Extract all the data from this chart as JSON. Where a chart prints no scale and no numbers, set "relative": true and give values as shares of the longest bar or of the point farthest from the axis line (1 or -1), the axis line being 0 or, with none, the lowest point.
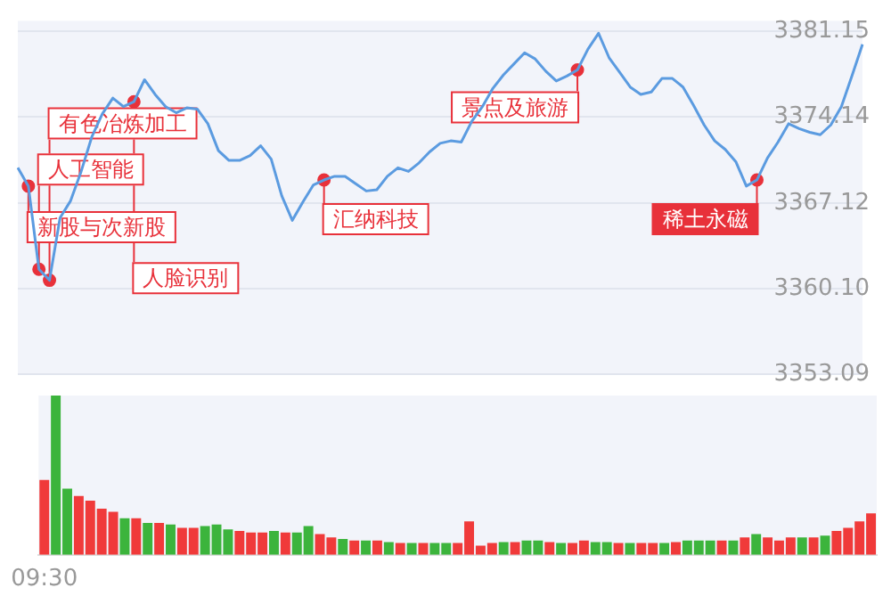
{
  "chart_data": [
    {
      "type": "line",
      "ylim": [
        3353.09,
        3382
      ],
      "yticks": [
        {
          "value": 3353.09,
          "label": "3353.09"
        },
        {
          "value": 3360.1,
          "label": "3360.10"
        },
        {
          "value": 3367.12,
          "label": "3367.12"
        },
        {
          "value": 3374.14,
          "label": "3374.14"
        },
        {
          "value": 3381.15,
          "label": "3381.15"
        }
      ],
      "grid": "y",
      "tick_labels": "y",
      "marker": "none",
      "categories": [
        null,
        null,
        null,
        null,
        null,
        null,
        null,
        null,
        null,
        null,
        null,
        null,
        null,
        null,
        null,
        null,
        null,
        null,
        null,
        null,
        null,
        null,
        null,
        null,
        null,
        null,
        null,
        null,
        null,
        null,
        null,
        null,
        null,
        null,
        null,
        null,
        null,
        null,
        null,
        null,
        null,
        null,
        null,
        null,
        null,
        null,
        null,
        null,
        null,
        null,
        null,
        null,
        null,
        null,
        null,
        null,
        null,
        null,
        null,
        null,
        null,
        null,
        null,
        null,
        null,
        null,
        null,
        null,
        null,
        null,
        null,
        null,
        null,
        null,
        null,
        null,
        null,
        null,
        null,
        null,
        null
      ],
      "series": [
        {
          "type": "line",
          "color": "#5b9be0",
          "values": [
            3370.0,
            3368.5,
            3361.7,
            3360.8,
            3365.9,
            3367.3,
            3369.7,
            3372.5,
            3374.4,
            3375.7,
            3375.0,
            3375.4,
            3377.2,
            3376.0,
            3375.0,
            3374.5,
            3374.9,
            3374.8,
            3373.6,
            3371.4,
            3370.6,
            3370.6,
            3371.0,
            3371.8,
            3370.7,
            3367.7,
            3365.7,
            3367.2,
            3368.6,
            3369.0,
            3369.3,
            3369.3,
            3368.7,
            3368.1,
            3368.2,
            3369.3,
            3370.0,
            3369.7,
            3370.4,
            3371.3,
            3372.0,
            3372.2,
            3372.1,
            3373.8,
            3375.0,
            3376.5,
            3377.6,
            3378.5,
            3379.4,
            3378.9,
            3377.9,
            3377.1,
            3377.5,
            3378.0,
            3379.7,
            3381.0,
            3379.0,
            3377.8,
            3376.6,
            3376.0,
            3376.2,
            3377.3,
            3377.3,
            3376.6,
            3375.1,
            3373.5,
            3372.2,
            3371.5,
            3370.5,
            3368.5,
            3369.0,
            3370.8,
            3372.1,
            3373.6,
            3373.2,
            3372.9,
            3372.7,
            3373.5,
            3375.0,
            3377.5,
            3380.1
          ]
        },
        {
          "type": "scatter",
          "color": "#e8313a",
          "marker": "circle",
          "values": [
            null,
            3368.5,
            3361.7,
            3360.8,
            null,
            null,
            null,
            null,
            null,
            null,
            null,
            3375.4,
            null,
            null,
            null,
            null,
            null,
            null,
            null,
            null,
            null,
            null,
            null,
            null,
            null,
            null,
            null,
            null,
            null,
            3369.0,
            null,
            null,
            null,
            null,
            null,
            null,
            null,
            null,
            null,
            null,
            null,
            null,
            null,
            null,
            null,
            null,
            null,
            null,
            null,
            null,
            null,
            null,
            null,
            3378.0,
            null,
            null,
            null,
            null,
            null,
            null,
            null,
            null,
            null,
            null,
            null,
            null,
            null,
            null,
            null,
            null,
            3369.0,
            null,
            null,
            null,
            null,
            null,
            null,
            null,
            null,
            null,
            null
          ]
        }
      ],
      "annotations": [
        "新股与次新股",
        "人工智能",
        "有色冶炼加工",
        "人脸识别",
        "汇纳科技",
        "景点及旅游",
        "稀土永磁"
      ]
    },
    {
      "type": "bar",
      "relative": true,
      "categories": [
        "09:30",
        null,
        null,
        null,
        null,
        null,
        null,
        null,
        null,
        null,
        null,
        null,
        null,
        null,
        null,
        null,
        null,
        null,
        null,
        null,
        null,
        null,
        null,
        null,
        null,
        null,
        null,
        null,
        null,
        null,
        null,
        null,
        null,
        null,
        null,
        null,
        null,
        null,
        null,
        null,
        null,
        null,
        null,
        null,
        null,
        null,
        null,
        null,
        null,
        null,
        null,
        null,
        null,
        null,
        null,
        null,
        null,
        null,
        null,
        null,
        null,
        null,
        null,
        null,
        null,
        null,
        null,
        null,
        null,
        null,
        null,
        null,
        null
      ],
      "values": [
        0.47,
        1.0,
        0.415,
        0.37,
        0.34,
        0.29,
        0.27,
        0.23,
        0.23,
        0.2,
        0.2,
        0.19,
        0.17,
        0.17,
        0.18,
        0.19,
        0.16,
        0.15,
        0.14,
        0.14,
        0.15,
        0.14,
        0.14,
        0.18,
        0.13,
        0.11,
        0.1,
        0.09,
        0.09,
        0.09,
        0.08,
        0.075,
        0.075,
        0.075,
        0.075,
        0.075,
        0.075,
        0.21,
        0.057,
        0.075,
        0.08,
        0.08,
        0.09,
        0.09,
        0.08,
        0.075,
        0.075,
        0.09,
        0.08,
        0.08,
        0.075,
        0.075,
        0.075,
        0.075,
        0.075,
        0.08,
        0.09,
        0.09,
        0.09,
        0.09,
        0.09,
        0.11,
        0.13,
        0.11,
        0.09,
        0.11,
        0.11,
        0.11,
        0.12,
        0.15,
        0.17,
        0.21,
        0.26
      ],
      "colors": [
        "#f03a3a",
        "#3cb43c",
        "#3cb43c",
        "#f03a3a",
        "#f03a3a",
        "#f03a3a",
        "#f03a3a",
        "#3cb43c",
        "#f03a3a",
        "#3cb43c",
        "#f03a3a",
        "#3cb43c",
        "#f03a3a",
        "#f03a3a",
        "#3cb43c",
        "#3cb43c",
        "#3cb43c",
        "#f03a3a",
        "#f03a3a",
        "#f03a3a",
        "#3cb43c",
        "#f03a3a",
        "#3cb43c",
        "#3cb43c",
        "#f03a3a",
        "#f03a3a",
        "#3cb43c",
        "#f03a3a",
        "#3cb43c",
        "#f03a3a",
        "#3cb43c",
        "#f03a3a",
        "#3cb43c",
        "#f03a3a",
        "#3cb43c",
        "#3cb43c",
        "#f03a3a",
        "#f03a3a",
        "#f03a3a",
        "#f03a3a",
        "#3cb43c",
        "#f03a3a",
        "#3cb43c",
        "#3cb43c",
        "#f03a3a",
        "#3cb43c",
        "#f03a3a",
        "#f03a3a",
        "#3cb43c",
        "#3cb43c",
        "#f03a3a",
        "#3cb43c",
        "#f03a3a",
        "#f03a3a",
        "#3cb43c",
        "#f03a3a",
        "#3cb43c",
        "#3cb43c",
        "#3cb43c",
        "#f03a3a",
        "#3cb43c",
        "#f03a3a",
        "#3cb43c",
        "#f03a3a",
        "#f03a3a",
        "#f03a3a",
        "#3cb43c",
        "#f03a3a",
        "#3cb43c",
        "#f03a3a",
        "#f03a3a",
        "#f03a3a",
        "#f03a3a"
      ]
    }
  ]
}
